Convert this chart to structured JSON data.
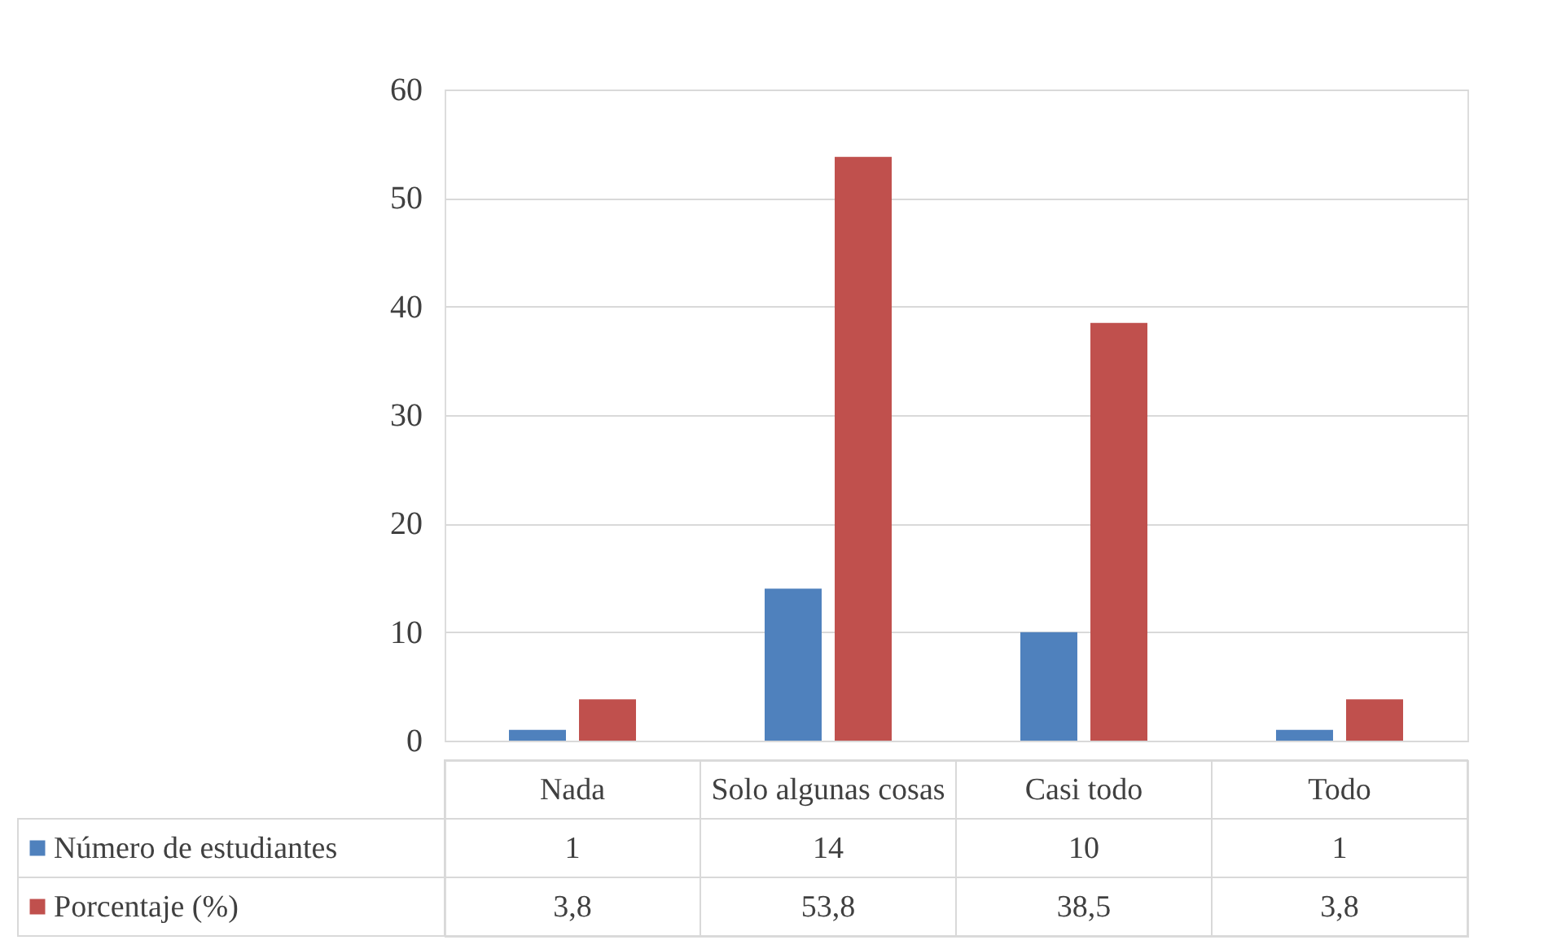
{
  "chart_data": {
    "type": "bar",
    "categories": [
      "Nada",
      "Solo algunas cosas",
      "Casi todo",
      "Todo"
    ],
    "series": [
      {
        "name": "Número de estudiantes",
        "color": "#4f81bd",
        "values": [
          1,
          14,
          10,
          1
        ],
        "value_labels": [
          "1",
          "14",
          "10",
          "1"
        ]
      },
      {
        "name": "Porcentaje (%)",
        "color": "#c0504d",
        "values": [
          3.8,
          53.8,
          38.5,
          3.8
        ],
        "value_labels": [
          "3,8",
          "53,8",
          "38,5",
          "3,8"
        ]
      }
    ],
    "ylim": [
      0,
      60
    ],
    "yticks": [
      0,
      10,
      20,
      30,
      40,
      50,
      60
    ],
    "grid": "y",
    "legend": "bottom"
  }
}
